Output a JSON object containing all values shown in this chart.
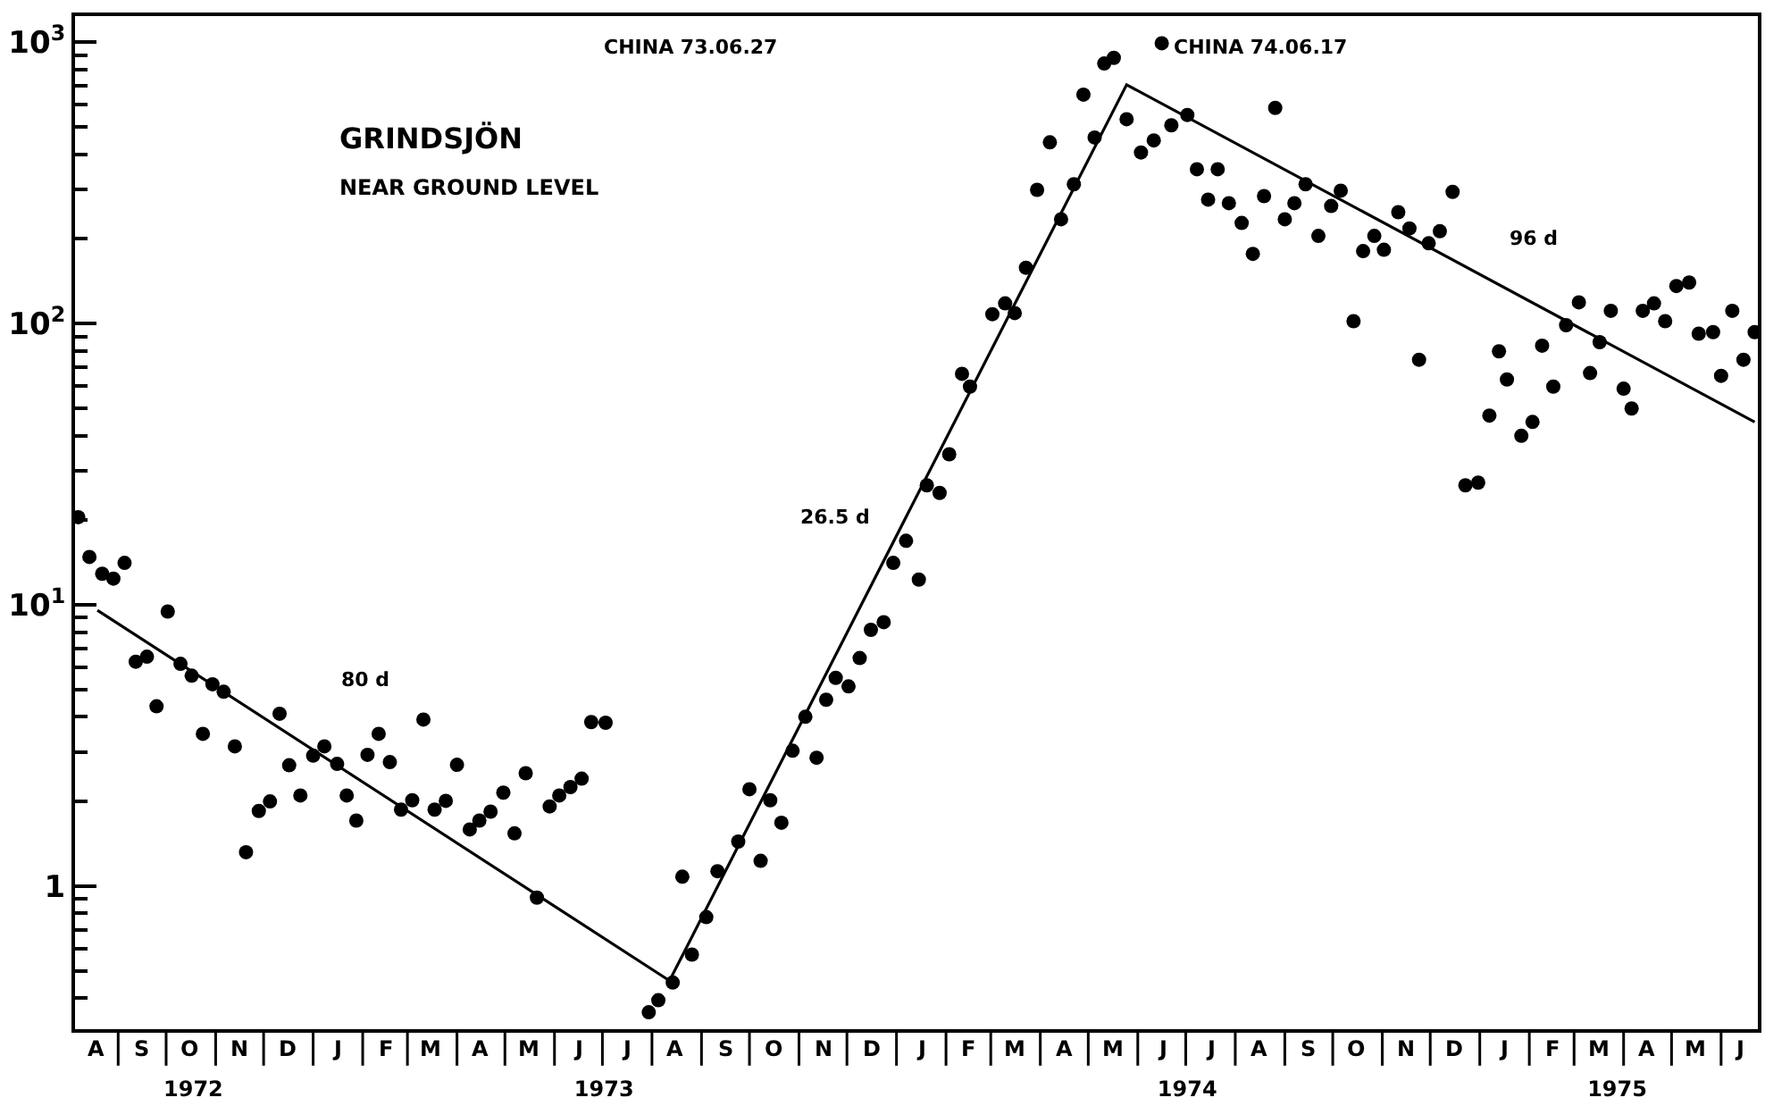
{
  "chart_data": {
    "type": "scatter",
    "title": "GRINDSJÖN",
    "subtitle": "NEAR GROUND LEVEL",
    "log": true,
    "marker": "circle",
    "ylim": [
      0.31,
      1240
    ],
    "yticks": [
      {
        "value": 0.4,
        "label": null
      },
      {
        "value": 0.5,
        "label": null
      },
      {
        "value": 0.6,
        "label": null
      },
      {
        "value": 0.7,
        "label": null
      },
      {
        "value": 0.8,
        "label": null
      },
      {
        "value": 0.9,
        "label": null
      },
      {
        "value": 1,
        "label": "1"
      },
      {
        "value": 2,
        "label": null
      },
      {
        "value": 3,
        "label": null
      },
      {
        "value": 4,
        "label": null
      },
      {
        "value": 5,
        "label": null
      },
      {
        "value": 6,
        "label": null
      },
      {
        "value": 7,
        "label": null
      },
      {
        "value": 8,
        "label": null
      },
      {
        "value": 9,
        "label": null
      },
      {
        "value": 10,
        "label": "10$^{1}$"
      },
      {
        "value": 20,
        "label": null
      },
      {
        "value": 30,
        "label": null
      },
      {
        "value": 40,
        "label": null
      },
      {
        "value": 50,
        "label": null
      },
      {
        "value": 60,
        "label": null
      },
      {
        "value": 70,
        "label": null
      },
      {
        "value": 80,
        "label": null
      },
      {
        "value": 90,
        "label": null
      },
      {
        "value": 100,
        "label": "10$^{2}$"
      },
      {
        "value": 200,
        "label": null
      },
      {
        "value": 300,
        "label": null
      },
      {
        "value": 400,
        "label": null
      },
      {
        "value": 500,
        "label": null
      },
      {
        "value": 600,
        "label": null
      },
      {
        "value": 700,
        "label": null
      },
      {
        "value": 800,
        "label": null
      },
      {
        "value": 900,
        "label": null
      },
      {
        "value": 1000,
        "label": "10$^{3}$"
      }
    ],
    "xlim": [
      "1972-08-05",
      "1975-06-24"
    ],
    "xticks": [
      {
        "value": "1972-10-18",
        "label": "1972"
      },
      {
        "value": "1973-07-02",
        "label": "1973"
      },
      {
        "value": "1974-07-02",
        "label": "1974"
      },
      {
        "value": "1975-03-28",
        "label": "1975"
      }
    ],
    "annotations": [
      "CHINA 73.06.27",
      "CHINA 74.06.17",
      "80 d",
      "26.5 d",
      "96 d",
      "A",
      "S",
      "O",
      "N",
      "D",
      "J",
      "F",
      "M",
      "A",
      "M",
      "J",
      "J",
      "A",
      "S",
      "O",
      "N",
      "D",
      "J",
      "F",
      "M",
      "A",
      "M",
      "J",
      "J",
      "A",
      "S",
      "O",
      "N",
      "D",
      "J",
      "F",
      "M",
      "A",
      "M",
      "J"
    ],
    "series": [
      {
        "color": "#000000",
        "x": [
          "1972-08-07",
          "1972-08-14",
          "1972-08-22",
          "1972-08-29",
          "1972-09-05",
          "1972-09-12",
          "1972-09-19",
          "1972-09-25",
          "1972-10-02",
          "1972-10-10",
          "1972-10-17",
          "1972-10-24",
          "1972-10-30",
          "1972-11-06",
          "1972-11-13",
          "1972-11-20",
          "1972-11-28",
          "1972-12-05",
          "1972-12-11",
          "1972-12-17",
          "1972-12-24",
          "1973-01-01",
          "1973-01-08",
          "1973-01-16",
          "1973-01-22",
          "1973-01-28",
          "1973-02-04",
          "1973-02-11",
          "1973-02-18",
          "1973-02-25",
          "1973-03-04",
          "1973-03-11",
          "1973-03-18",
          "1973-03-25",
          "1973-04-01",
          "1973-04-09",
          "1973-04-15",
          "1973-04-22",
          "1973-04-30",
          "1973-05-07",
          "1973-05-14",
          "1973-05-21",
          "1973-05-29",
          "1973-06-04",
          "1973-06-11",
          "1973-06-18",
          "1973-06-24",
          "1973-07-03",
          "1973-07-30",
          "1973-08-05",
          "1973-08-14",
          "1973-08-20",
          "1973-08-26",
          "1973-09-04",
          "1973-09-11",
          "1973-09-24",
          "1973-10-01",
          "1973-10-08",
          "1973-10-14",
          "1973-10-21",
          "1973-10-28",
          "1973-11-05",
          "1973-11-12",
          "1973-11-18",
          "1973-11-24",
          "1973-12-02",
          "1973-12-09",
          "1973-12-16",
          "1973-12-24",
          "1973-12-30",
          "1974-01-07",
          "1974-01-15",
          "1974-01-20",
          "1974-01-28",
          "1974-02-03",
          "1974-02-11",
          "1974-02-16",
          "1974-03-02",
          "1974-03-10",
          "1974-03-16",
          "1974-03-23",
          "1974-03-30",
          "1974-04-07",
          "1974-04-14",
          "1974-04-22",
          "1974-04-28",
          "1974-05-05",
          "1974-05-11",
          "1974-05-17",
          "1974-05-25",
          "1974-06-03",
          "1974-06-11",
          "1974-06-16",
          "1974-06-22",
          "1974-07-02",
          "1974-07-08",
          "1974-07-15",
          "1974-07-21",
          "1974-07-28",
          "1974-08-05",
          "1974-08-12",
          "1974-08-19",
          "1974-08-26",
          "1974-09-01",
          "1974-09-07",
          "1974-09-14",
          "1974-09-22",
          "1974-09-30",
          "1974-10-06",
          "1974-10-14",
          "1974-10-20",
          "1974-10-27",
          "1974-11-02",
          "1974-11-11",
          "1974-11-18",
          "1974-11-24",
          "1974-11-30",
          "1974-12-07",
          "1974-12-15",
          "1974-12-23",
          "1974-12-31",
          "1975-01-07",
          "1975-01-13",
          "1975-01-18",
          "1975-01-27",
          "1975-02-03",
          "1975-02-09",
          "1975-02-16",
          "1975-02-24",
          "1975-03-04",
          "1975-03-11",
          "1975-03-17",
          "1975-03-24",
          "1975-04-01",
          "1975-04-06",
          "1975-04-13",
          "1975-04-20",
          "1975-04-27",
          "1975-05-04",
          "1975-05-12",
          "1975-05-18",
          "1975-05-27",
          "1975-06-01",
          "1975-06-08",
          "1975-06-15",
          "1975-06-22"
        ],
        "values": [
          20.5,
          14.8,
          12.9,
          12.4,
          14.1,
          6.28,
          6.54,
          4.36,
          9.47,
          6.17,
          5.6,
          3.48,
          5.22,
          4.91,
          3.14,
          1.32,
          1.85,
          2.0,
          4.1,
          2.69,
          2.1,
          2.91,
          3.14,
          2.72,
          2.1,
          1.71,
          2.93,
          3.48,
          2.76,
          1.87,
          2.02,
          3.91,
          1.87,
          2.01,
          2.7,
          1.59,
          1.71,
          1.84,
          2.15,
          1.54,
          2.52,
          0.91,
          1.92,
          2.1,
          2.25,
          2.41,
          3.83,
          3.81,
          0.356,
          0.393,
          0.454,
          1.08,
          0.571,
          0.776,
          1.13,
          1.44,
          2.21,
          1.23,
          2.02,
          1.68,
          3.03,
          4.0,
          2.86,
          4.6,
          5.5,
          5.13,
          6.47,
          8.15,
          8.68,
          14.1,
          16.9,
          12.3,
          26.6,
          25,
          34.3,
          66.3,
          59.7,
          108,
          118,
          109,
          158,
          299,
          441,
          235,
          313,
          652,
          459,
          841,
          881,
          533,
          406,
          448,
          993,
          507,
          552,
          354,
          276,
          354,
          268,
          228,
          177,
          284,
          585,
          235,
          268,
          313,
          205,
          262,
          297,
          102,
          181,
          205,
          183,
          249,
          218,
          74.4,
          193,
          213,
          294,
          26.6,
          27.2,
          47.1,
          79.7,
          63.3,
          39.9,
          44.7,
          83.5,
          59.7,
          98.7,
          119,
          66.7,
          85.9,
          111,
          58.7,
          49.9,
          111,
          118,
          102,
          136,
          140,
          92.1,
          93.3,
          65.2,
          111,
          74.4,
          93.3
        ]
      },
      {
        "type": "line",
        "color": "#000000",
        "marker": "none",
        "line_style": "solid",
        "x": [
          "1972-08-19",
          "1973-08-12",
          "1974-05-25",
          "1975-06-22"
        ],
        "values": [
          9.57,
          0.461,
          707,
          44.7
        ]
      }
    ]
  }
}
